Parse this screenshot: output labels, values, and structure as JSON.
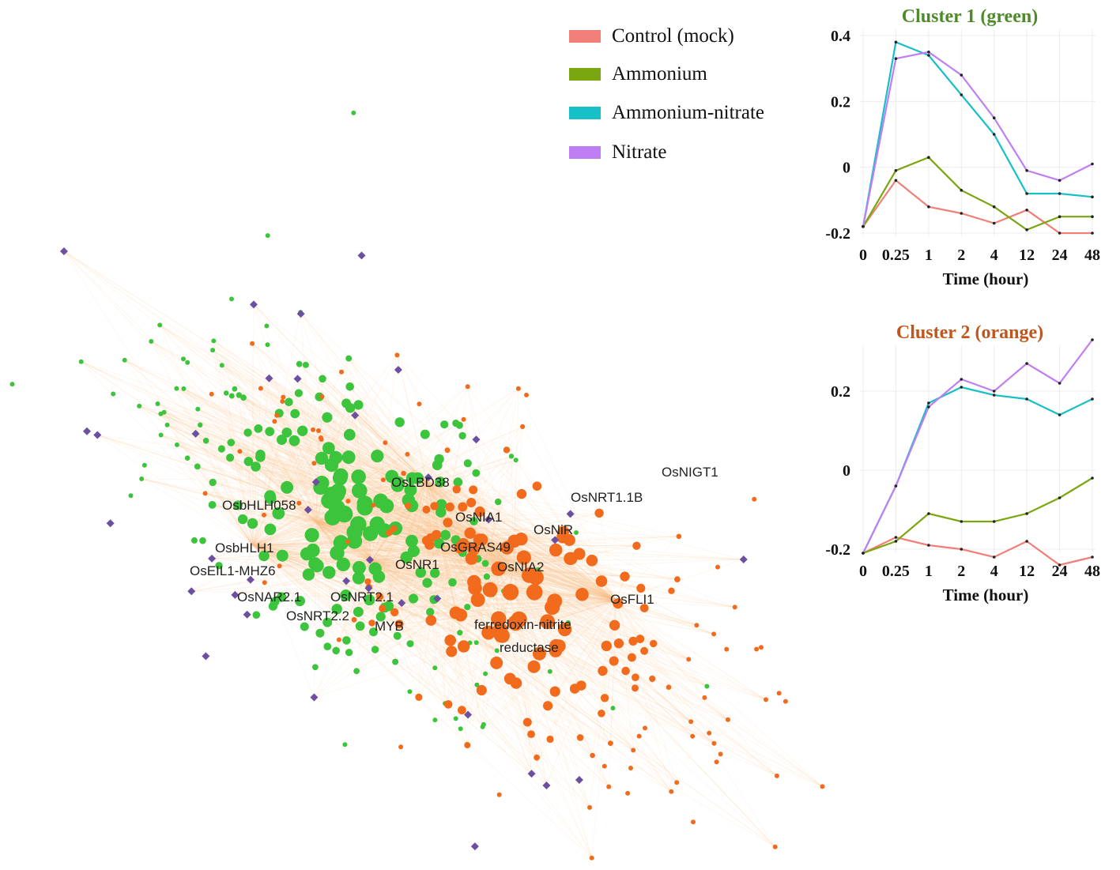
{
  "network": {
    "labels": [
      {
        "text": "OsLBD38"
      },
      {
        "text": "OsbHLH058"
      },
      {
        "text": "OsNIA1"
      },
      {
        "text": "OsNRT1.1B"
      },
      {
        "text": "OsNIGT1"
      },
      {
        "text": "OsNiR"
      },
      {
        "text": "OsGRAS49"
      },
      {
        "text": "OsbHLH1"
      },
      {
        "text": "OsNR1"
      },
      {
        "text": "OsNIA2"
      },
      {
        "text": "OsEIL1-MHZ6"
      },
      {
        "text": "OsNAR2.1"
      },
      {
        "text": "OsNRT2.1"
      },
      {
        "text": "OsFLI1"
      },
      {
        "text": "OsNRT2.2"
      },
      {
        "text": "MYB"
      },
      {
        "text": "ferredoxin-nitrite"
      },
      {
        "text": "reductase"
      }
    ],
    "colors": {
      "cluster1": "#3cc43c",
      "cluster2": "#f26a1b",
      "hub": "#6b4fa0",
      "edge": "#f9c08a"
    }
  },
  "legend": [
    {
      "label": "Control (mock)",
      "color": "#f07f78"
    },
    {
      "label": "Ammonium",
      "color": "#7aa60f"
    },
    {
      "label": "Ammonium-nitrate",
      "color": "#17bfc6"
    },
    {
      "label": "Nitrate",
      "color": "#c07ef5"
    }
  ],
  "chart_data": [
    {
      "type": "line",
      "title": "Cluster 1 (green)",
      "title_color": "#4f8a2a",
      "xlabel": "Time (hour)",
      "ylabel": "",
      "categories": [
        "0",
        "0.25",
        "1",
        "2",
        "4",
        "12",
        "24",
        "48"
      ],
      "ylim": [
        -0.2,
        0.4
      ],
      "yticks": [
        "0.4",
        "0.2",
        "0",
        "-0.2"
      ],
      "ytick_values": [
        0.4,
        0.2,
        0,
        -0.2
      ],
      "series": [
        {
          "name": "Control (mock)",
          "color": "#f07f78",
          "values": [
            -0.18,
            -0.04,
            -0.12,
            -0.14,
            -0.17,
            -0.13,
            -0.2,
            -0.2
          ]
        },
        {
          "name": "Ammonium",
          "color": "#7aa60f",
          "values": [
            -0.18,
            -0.01,
            0.03,
            -0.07,
            -0.12,
            -0.19,
            -0.15,
            -0.15
          ]
        },
        {
          "name": "Ammonium-nitrate",
          "color": "#17bfc6",
          "values": [
            -0.18,
            0.38,
            0.34,
            0.22,
            0.1,
            -0.08,
            -0.08,
            -0.09
          ]
        },
        {
          "name": "Nitrate",
          "color": "#c07ef5",
          "values": [
            -0.18,
            0.33,
            0.35,
            0.28,
            0.15,
            -0.01,
            -0.04,
            0.01
          ]
        }
      ]
    },
    {
      "type": "line",
      "title": "Cluster 2 (orange)",
      "title_color": "#c0561c",
      "xlabel": "Time (hour)",
      "ylabel": "",
      "categories": [
        "0",
        "0.25",
        "1",
        "2",
        "4",
        "12",
        "24",
        "48"
      ],
      "ylim": [
        -0.2,
        0.3
      ],
      "yticks": [
        "0.2",
        "0",
        "-0.2"
      ],
      "ytick_values": [
        0.2,
        0,
        -0.2
      ],
      "series": [
        {
          "name": "Control (mock)",
          "color": "#f07f78",
          "values": [
            -0.21,
            -0.17,
            -0.19,
            -0.2,
            -0.22,
            -0.18,
            -0.24,
            -0.22
          ]
        },
        {
          "name": "Ammonium",
          "color": "#7aa60f",
          "values": [
            -0.21,
            -0.18,
            -0.11,
            -0.13,
            -0.13,
            -0.11,
            -0.07,
            -0.02
          ]
        },
        {
          "name": "Ammonium-nitrate",
          "color": "#17bfc6",
          "values": [
            -0.21,
            -0.04,
            0.17,
            0.21,
            0.19,
            0.18,
            0.14,
            0.18
          ]
        },
        {
          "name": "Nitrate",
          "color": "#c07ef5",
          "values": [
            -0.21,
            -0.04,
            0.16,
            0.23,
            0.2,
            0.27,
            0.22,
            0.33
          ]
        }
      ]
    }
  ]
}
